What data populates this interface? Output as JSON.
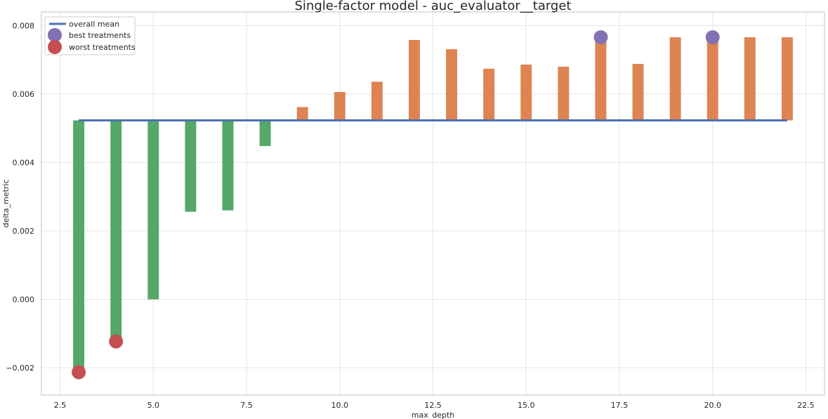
{
  "chart_data": {
    "type": "bar",
    "title": "Single-factor model - auc_evaluator__target",
    "xlabel": "max_depth",
    "ylabel": "delta_metric",
    "xlim": [
      2.0,
      23.0
    ],
    "ylim": [
      -0.0028,
      0.0084
    ],
    "xticks": [
      2.5,
      5.0,
      7.5,
      10.0,
      12.5,
      15.0,
      17.5,
      20.0,
      22.5
    ],
    "xtick_labels": [
      "2.5",
      "5.0",
      "7.5",
      "10.0",
      "12.5",
      "15.0",
      "17.5",
      "20.0",
      "22.5"
    ],
    "yticks": [
      -0.002,
      0.0,
      0.002,
      0.004,
      0.006,
      0.008
    ],
    "ytick_labels": [
      "−0.002",
      "0.000",
      "0.002",
      "0.004",
      "0.006",
      "0.008"
    ],
    "grid": true,
    "overall_mean": 0.00523,
    "mean_x_range": [
      3,
      22
    ],
    "x": [
      3,
      4,
      5,
      6,
      7,
      8,
      9,
      10,
      11,
      12,
      13,
      14,
      15,
      16,
      17,
      18,
      19,
      20,
      21,
      22
    ],
    "values": [
      -0.00213,
      -0.00123,
      0.0,
      0.00256,
      0.0026,
      0.00448,
      0.00562,
      0.00606,
      0.00636,
      0.00758,
      0.00731,
      0.00674,
      0.00686,
      0.0068,
      0.00766,
      0.00688,
      0.00766,
      0.00766,
      0.00766,
      0.00766
    ],
    "best_treatments": [
      {
        "x": 17,
        "y": 0.00766
      },
      {
        "x": 20,
        "y": 0.00766
      }
    ],
    "worst_treatments": [
      {
        "x": 3,
        "y": -0.00213
      },
      {
        "x": 4,
        "y": -0.00123
      }
    ],
    "legend": {
      "placement": "top-left",
      "entries": [
        "overall mean",
        "best treatments",
        "worst treatments"
      ]
    },
    "colors": {
      "below_mean": "#55a868",
      "above_mean": "#dd8452",
      "mean_line": "#4c72b0",
      "best": "#8172b3",
      "worst": "#c44e52",
      "grid": "#e5e5e5",
      "frame": "#cccccc"
    }
  }
}
